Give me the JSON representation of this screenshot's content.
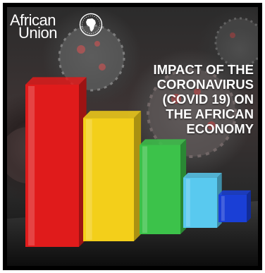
{
  "logo": {
    "line1": "African",
    "line2": "Union",
    "emblem_icon": "africa-map-emblem-icon"
  },
  "headline": {
    "lines": [
      "IMPACT OF THE",
      "CORONAVIRUS",
      "(COVID 19) ON",
      "THE AFRICAN",
      "ECONOMY"
    ]
  },
  "chart": {
    "type": "bar",
    "levels": [
      1.0,
      0.76,
      0.55,
      0.31,
      0.17
    ],
    "bar_colors": [
      "#e01b1b",
      "#f3cf1a",
      "#3cc24a",
      "#59c9ef",
      "#1a3fd6"
    ]
  }
}
